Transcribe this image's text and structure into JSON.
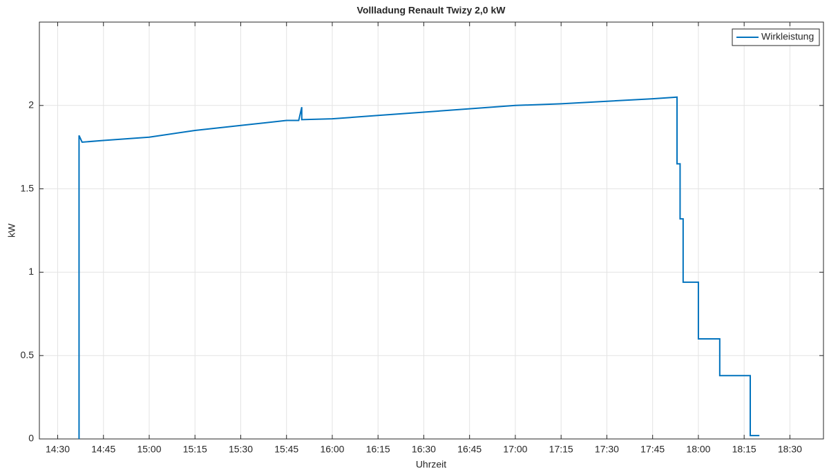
{
  "chart_data": {
    "type": "line",
    "title": "Vollladung Renault Twizy 2,0 kW",
    "x_label": "Uhrzeit",
    "y_label": "kW",
    "x": [
      "14:37",
      "14:37",
      "14:38",
      "14:45",
      "15:00",
      "15:15",
      "15:30",
      "15:45",
      "15:49",
      "15:50",
      "15:50",
      "16:00",
      "16:15",
      "16:30",
      "16:45",
      "17:00",
      "17:15",
      "17:30",
      "17:45",
      "17:53",
      "17:53",
      "17:53",
      "17:54",
      "17:54",
      "17:55",
      "17:55",
      "18:00",
      "18:00",
      "18:07",
      "18:07",
      "18:17",
      "18:17",
      "18:20"
    ],
    "series": [
      {
        "name": "Wirkleistung",
        "color": "#0072bd",
        "values": [
          0,
          1.82,
          1.78,
          1.79,
          1.81,
          1.85,
          1.88,
          1.91,
          1.91,
          1.99,
          1.915,
          1.92,
          1.94,
          1.96,
          1.98,
          2.0,
          2.01,
          2.025,
          2.04,
          2.05,
          1.98,
          1.65,
          1.65,
          1.32,
          1.32,
          0.94,
          0.94,
          0.6,
          0.6,
          0.38,
          0.38,
          0.02,
          0.02
        ]
      }
    ],
    "xlim": [
      "14:24",
      "18:41"
    ],
    "xticks": [
      "14:30",
      "14:45",
      "15:00",
      "15:15",
      "15:30",
      "15:45",
      "16:00",
      "16:15",
      "16:30",
      "16:45",
      "17:00",
      "17:15",
      "17:30",
      "17:45",
      "18:00",
      "18:15",
      "18:30"
    ],
    "ylim": [
      0,
      2.5
    ],
    "yticks": [
      0,
      0.5,
      1,
      1.5,
      2
    ],
    "grid": true,
    "legend": "top-right"
  }
}
